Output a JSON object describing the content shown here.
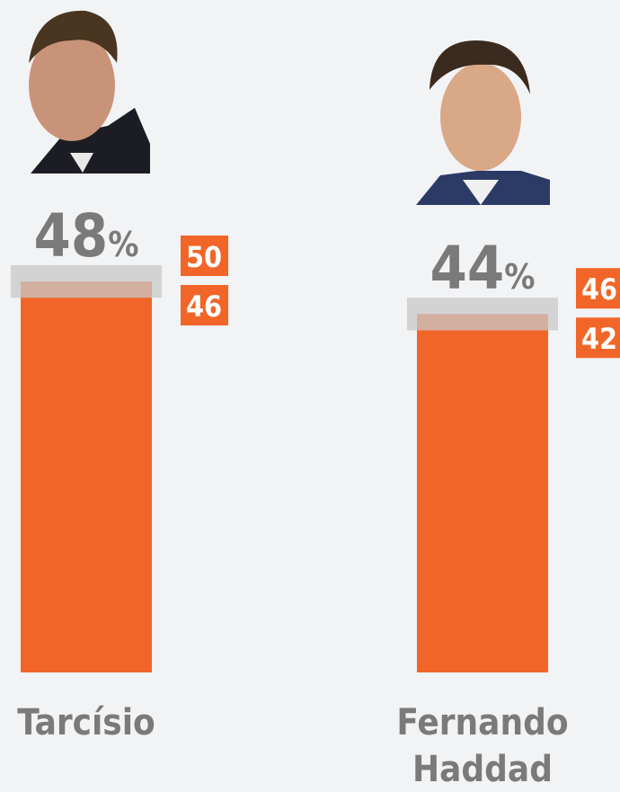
{
  "chart_data": {
    "type": "bar",
    "categories": [
      "Tarcísio",
      "Fernando Haddad"
    ],
    "values": [
      48,
      44
    ],
    "unit": "%",
    "upper": [
      50,
      46
    ],
    "lower": [
      46,
      42
    ],
    "color": "#f26528",
    "ylim": [
      0,
      50
    ]
  }
}
